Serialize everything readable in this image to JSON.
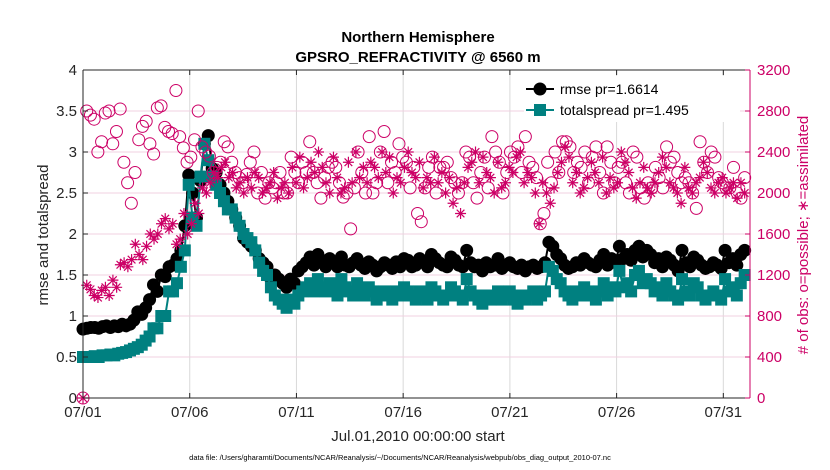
{
  "chart_data": {
    "type": "line",
    "title": "Northern Hemisphere",
    "subtitle": "GPSRO_REFRACTIVITY @ 6560 m",
    "xlabel": "Jul.01,2010 00:00:00 start",
    "ylabel": "rmse and totalspread",
    "ylabel_right": "# of obs: o=possible; ∗=assimilated",
    "footnote": "data file: /Users/gharamti/Documents/NCAR/Reanalysis/~/Documents/NCAR/Reanalysis/webpub/obs_diag_output_2010-07.nc",
    "x_range": [
      0,
      31.25
    ],
    "ylim": [
      0,
      4
    ],
    "ylim_right": [
      0,
      3200
    ],
    "x_ticks": [
      0,
      5,
      10,
      15,
      20,
      25,
      30
    ],
    "x_tick_labels": [
      "07/01",
      "07/06",
      "07/11",
      "07/16",
      "07/21",
      "07/26",
      "07/31"
    ],
    "y_ticks": [
      "0",
      "0.5",
      "1",
      "1.5",
      "2",
      "2.5",
      "3",
      "3.5",
      "4"
    ],
    "y_ticks_right": [
      "0",
      "400",
      "800",
      "1200",
      "1600",
      "2000",
      "2400",
      "2800",
      "3200"
    ],
    "legend_position": "top-right",
    "series": [
      {
        "name": "rmse pr=1.6614",
        "axis": "left",
        "color": "#000000",
        "marker": "circle",
        "values": [
          0.84,
          0.85,
          0.86,
          0.86,
          0.85,
          0.87,
          0.88,
          0.86,
          0.88,
          0.87,
          0.9,
          0.88,
          0.9,
          0.95,
          1.05,
          1.02,
          1.1,
          1.2,
          1.38,
          1.3,
          1.5,
          1.48,
          1.6,
          1.62,
          1.7,
          1.8,
          2.1,
          2.72,
          2.5,
          2.2,
          2.65,
          3.1,
          3.2,
          2.8,
          2.75,
          2.6,
          2.5,
          2.4,
          2.3,
          2.2,
          2.1,
          1.95,
          1.9,
          1.85,
          1.8,
          1.7,
          1.65,
          1.6,
          1.45,
          1.5,
          1.45,
          1.4,
          1.35,
          1.45,
          1.4,
          1.55,
          1.6,
          1.65,
          1.72,
          1.62,
          1.75,
          1.68,
          1.6,
          1.7,
          1.65,
          1.6,
          1.72,
          1.62,
          1.6,
          1.65,
          1.7,
          1.62,
          1.58,
          1.66,
          1.62,
          1.55,
          1.6,
          1.65,
          1.62,
          1.58,
          1.66,
          1.6,
          1.7,
          1.68,
          1.6,
          1.62,
          1.7,
          1.65,
          1.6,
          1.75,
          1.7,
          1.65,
          1.62,
          1.6,
          1.72,
          1.68,
          1.62,
          1.6,
          1.8,
          1.65,
          1.6,
          1.62,
          1.55,
          1.65,
          1.6,
          1.62,
          1.7,
          1.58,
          1.62,
          1.65,
          1.6,
          1.58,
          1.62,
          1.55,
          1.6,
          1.62,
          1.58,
          1.6,
          1.65,
          1.9,
          1.85,
          1.75,
          1.7,
          1.62,
          1.58,
          1.6,
          1.65,
          1.62,
          1.7,
          1.65,
          1.62,
          1.6,
          1.68,
          1.75,
          1.62,
          1.7,
          1.65,
          1.85,
          1.7,
          1.75,
          1.68,
          1.8,
          1.85,
          1.72,
          1.8,
          1.75,
          1.65,
          1.7,
          1.6,
          1.72,
          1.68,
          1.62,
          1.55,
          1.8,
          1.65,
          1.6,
          1.72,
          1.68,
          1.62,
          1.58,
          1.6,
          1.65,
          1.62,
          1.58,
          1.8,
          1.65,
          1.7,
          1.62,
          1.75,
          1.8
        ]
      },
      {
        "name": "totalspread pr=1.495",
        "axis": "left",
        "color": "#008080",
        "marker": "square",
        "values": [
          0.5,
          0.5,
          0.5,
          0.51,
          0.5,
          0.52,
          0.52,
          0.53,
          0.52,
          0.54,
          0.55,
          0.56,
          0.58,
          0.6,
          0.62,
          0.65,
          0.7,
          0.75,
          0.85,
          0.85,
          1.0,
          1.0,
          1.3,
          1.3,
          1.4,
          1.6,
          1.8,
          2.6,
          2.2,
          2.1,
          2.7,
          3.1,
          2.9,
          2.7,
          2.6,
          2.5,
          2.4,
          2.3,
          2.3,
          2.2,
          2.1,
          2.0,
          1.95,
          1.9,
          1.8,
          1.65,
          1.55,
          1.5,
          1.35,
          1.25,
          1.2,
          1.15,
          1.1,
          1.2,
          1.15,
          1.25,
          1.3,
          1.35,
          1.4,
          1.3,
          1.45,
          1.35,
          1.3,
          1.4,
          1.35,
          1.25,
          1.45,
          1.35,
          1.3,
          1.25,
          1.4,
          1.3,
          1.25,
          1.35,
          1.3,
          1.2,
          1.25,
          1.3,
          1.25,
          1.2,
          1.3,
          1.25,
          1.35,
          1.3,
          1.25,
          1.2,
          1.3,
          1.25,
          1.2,
          1.35,
          1.3,
          1.25,
          1.2,
          1.25,
          1.35,
          1.3,
          1.25,
          1.2,
          1.45,
          1.3,
          1.25,
          1.2,
          1.15,
          1.25,
          1.2,
          1.25,
          1.3,
          1.2,
          1.25,
          1.3,
          1.2,
          1.15,
          1.25,
          1.2,
          1.25,
          1.3,
          1.2,
          1.25,
          1.3,
          1.6,
          1.55,
          1.45,
          1.4,
          1.3,
          1.25,
          1.2,
          1.3,
          1.25,
          1.35,
          1.3,
          1.25,
          1.2,
          1.3,
          1.4,
          1.25,
          1.35,
          1.3,
          1.55,
          1.35,
          1.4,
          1.3,
          1.5,
          1.55,
          1.4,
          1.45,
          1.4,
          1.3,
          1.35,
          1.25,
          1.4,
          1.3,
          1.25,
          1.2,
          1.45,
          1.3,
          1.25,
          1.4,
          1.35,
          1.25,
          1.2,
          1.25,
          1.3,
          1.25,
          1.2,
          1.45,
          1.3,
          1.35,
          1.25,
          1.4,
          1.5
        ]
      },
      {
        "name": "possible obs",
        "axis": "right",
        "color": "#cc0066",
        "marker": "open-circle",
        "values": [
          0,
          2800,
          2760,
          2720,
          2400,
          2500,
          2780,
          2800,
          2480,
          2600,
          2820,
          2300,
          2100,
          1900,
          2200,
          2520,
          2650,
          2700,
          2480,
          2380,
          2830,
          2850,
          2640,
          2600,
          2580,
          3000,
          2550,
          2440,
          2300,
          2350,
          2520,
          2800,
          2450,
          2400,
          2360,
          2200,
          2250,
          2300,
          2500,
          2450,
          2300,
          2200,
          2150,
          2100,
          2180,
          2300,
          2400,
          2000,
          2200,
          1950,
          2100,
          2050,
          2100,
          2200,
          2000,
          2000,
          2350,
          2200,
          2100,
          2300,
          2200,
          2500,
          2200,
          2100,
          1950,
          2150,
          2250,
          2300,
          2250,
          2100,
          1960,
          2000,
          1650,
          2050,
          2400,
          2200,
          2000,
          2550,
          2000,
          2100,
          2400,
          2600,
          2100,
          2300,
          2200,
          2480,
          2350,
          2300,
          2050,
          2250,
          1800,
          1720,
          2050,
          2250,
          2350,
          2000,
          2250,
          2250,
          2300,
          2150,
          2100,
          2000,
          2100,
          2400,
          2350,
          2100,
          1950,
          2200,
          2350,
          2050,
          2550,
          2400,
          2300,
          2000,
          2200,
          2400,
          2350,
          2450,
          2200,
          2550,
          2300,
          2250,
          2150,
          1700,
          1800,
          2300,
          2100,
          2400,
          2200,
          2500,
          2500,
          2450,
          2200,
          2300,
          2250,
          2400,
          2100,
          2350,
          2450,
          2200,
          2000,
          2450,
          2300,
          2100,
          2250,
          2300,
          2100,
          2000,
          2400,
          2350,
          2050,
          1950,
          2100,
          2050,
          2250,
          2150,
          2050,
          2450,
          2300,
          2350,
          2200,
          2100,
          2150,
          2100,
          2000,
          1850,
          2500,
          2300,
          2200,
          2400,
          2350,
          2150,
          2100,
          2050,
          2050,
          2250,
          2000,
          1950,
          2150
        ]
      },
      {
        "name": "assimilated obs",
        "axis": "right",
        "color": "#cc0066",
        "marker": "asterisk",
        "values": [
          0,
          1100,
          1060,
          1000,
          980,
          1050,
          1080,
          1000,
          1150,
          1080,
          1300,
          1320,
          1280,
          1350,
          1500,
          1400,
          1350,
          1480,
          1600,
          1550,
          1600,
          1700,
          1750,
          1650,
          1700,
          1500,
          1550,
          1800,
          1600,
          1700,
          1900,
          1800,
          2050,
          2000,
          2100,
          2200,
          2150,
          2250,
          2300,
          2150,
          2200,
          2050,
          2100,
          2000,
          2150,
          2050,
          2200,
          2150,
          2000,
          2050,
          2100,
          2200,
          1950,
          2050,
          2100,
          2000,
          2250,
          2100,
          2350,
          2050,
          2150,
          2300,
          2200,
          2400,
          2250,
          2100,
          2000,
          2350,
          2150,
          2000,
          2050,
          2300,
          2100,
          2400,
          2150,
          2250,
          2100,
          2300,
          2250,
          2150,
          2400,
          2200,
          2350,
          2000,
          2150,
          2100,
          2250,
          2400,
          2200,
          2150,
          2300,
          2050,
          2150,
          2100,
          2350,
          2100,
          2200,
          2000,
          2150,
          1900,
          2050,
          1800,
          2100,
          2250,
          2300,
          2400,
          2100,
          2350,
          2200,
          2150,
          2000,
          2300,
          2050,
          2100,
          2250,
          2200,
          2350,
          2400,
          2100,
          2200,
          2150,
          2000,
          1700,
          2100,
          2000,
          1900,
          2050,
          2200,
          2300,
          2450,
          2350,
          2100,
          2200,
          2000,
          2050,
          2150,
          2300,
          2200,
          2100,
          2350,
          2000,
          2150,
          2050,
          2100,
          2400,
          2300,
          2200,
          2050,
          1950,
          2100,
          2250,
          2050,
          2000,
          2100,
          2200,
          2350,
          2250,
          2100,
          2050,
          2000,
          1900,
          2250,
          2050,
          2000,
          2100,
          2150,
          2300,
          2200,
          2050,
          2000,
          2100,
          2150,
          2000,
          2050,
          2100,
          1950,
          2100,
          2000
        ]
      }
    ]
  }
}
